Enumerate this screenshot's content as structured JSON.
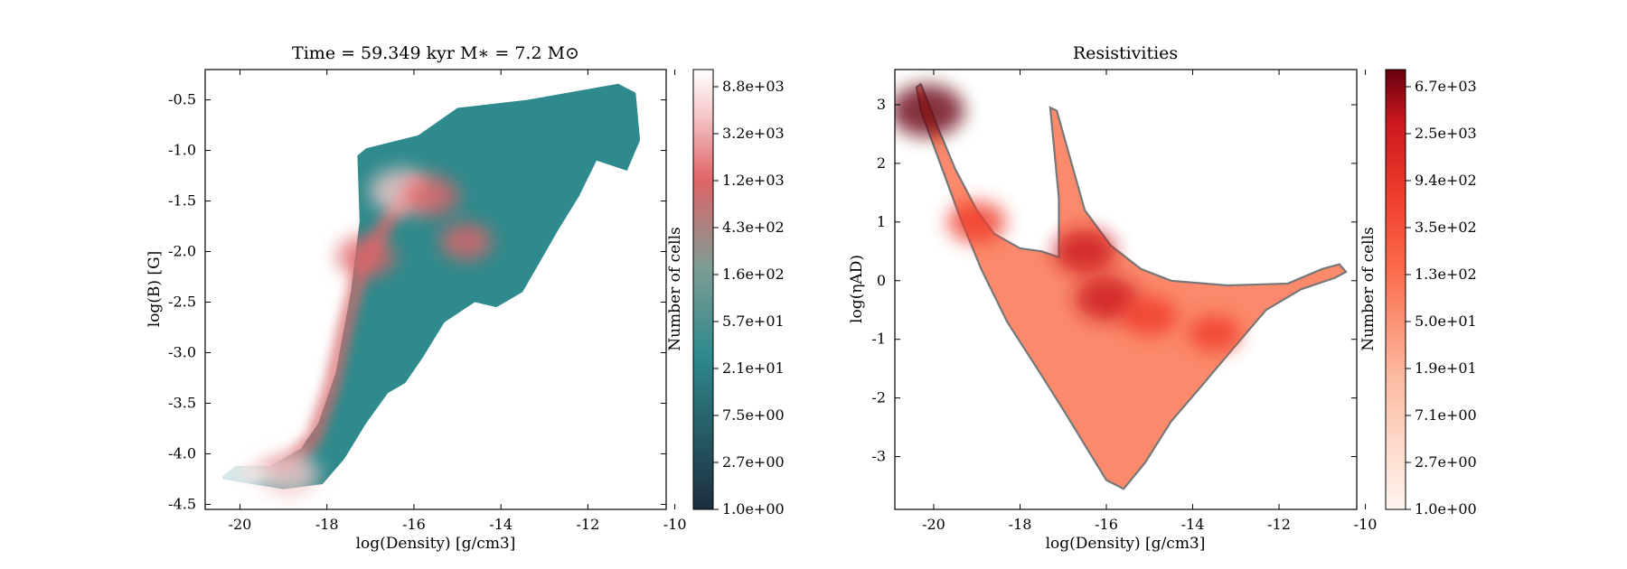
{
  "chart_data": [
    {
      "type": "heatmap",
      "title": "Time = 59.349 kyr    M∗ = 7.2 M⊙",
      "xlabel": "log(Density) [g/cm3]",
      "ylabel": "log(B) [G]",
      "xlim": [
        -20.8,
        -10.2
      ],
      "ylim": [
        -4.55,
        -0.2
      ],
      "xticks": [
        -20,
        -18,
        -16,
        -14,
        -12,
        -10
      ],
      "yticks": [
        -4.5,
        -4.0,
        -3.5,
        -3.0,
        -2.5,
        -2.0,
        -1.5,
        -1.0,
        -0.5
      ],
      "xtick_labels": [
        "-20",
        "-18",
        "-16",
        "-14",
        "-12",
        "-10"
      ],
      "ytick_labels": [
        "-4.5",
        "-4.0",
        "-3.5",
        "-3.0",
        "-2.5",
        "-2.0",
        "-1.5",
        "-1.0",
        "-0.5"
      ],
      "grid": false,
      "colormap": [
        "#1d2d40",
        "#2e8a8c",
        "#7e9c94",
        "#e06468",
        "#f6c9cb",
        "#ffffff"
      ],
      "colorbar": {
        "label": "Number of cells",
        "scale": "log",
        "tick_labels": [
          "1.0e+00",
          "2.7e+00",
          "7.5e+00",
          "2.1e+01",
          "5.7e+01",
          "1.6e+02",
          "4.3e+02",
          "1.2e+03",
          "3.2e+03",
          "8.8e+03"
        ]
      },
      "outline": [
        {
          "x": -20.4,
          "y": -4.22
        },
        {
          "x": -20.1,
          "y": -4.12
        },
        {
          "x": -19.3,
          "y": -4.12
        },
        {
          "x": -18.6,
          "y": -3.95
        },
        {
          "x": -18.2,
          "y": -3.7
        },
        {
          "x": -17.8,
          "y": -3.2
        },
        {
          "x": -17.45,
          "y": -2.4
        },
        {
          "x": -17.25,
          "y": -1.7
        },
        {
          "x": -17.3,
          "y": -1.05
        },
        {
          "x": -17.1,
          "y": -0.98
        },
        {
          "x": -15.9,
          "y": -0.85
        },
        {
          "x": -15.0,
          "y": -0.58
        },
        {
          "x": -13.4,
          "y": -0.5
        },
        {
          "x": -11.3,
          "y": -0.34
        },
        {
          "x": -10.9,
          "y": -0.43
        },
        {
          "x": -10.8,
          "y": -0.9
        },
        {
          "x": -11.1,
          "y": -1.2
        },
        {
          "x": -11.8,
          "y": -1.1
        },
        {
          "x": -12.2,
          "y": -1.45
        },
        {
          "x": -12.7,
          "y": -1.8
        },
        {
          "x": -13.1,
          "y": -2.1
        },
        {
          "x": -13.5,
          "y": -2.4
        },
        {
          "x": -14.1,
          "y": -2.55
        },
        {
          "x": -14.6,
          "y": -2.5
        },
        {
          "x": -15.3,
          "y": -2.7
        },
        {
          "x": -15.8,
          "y": -3.05
        },
        {
          "x": -16.2,
          "y": -3.3
        },
        {
          "x": -16.6,
          "y": -3.4
        },
        {
          "x": -17.1,
          "y": -3.7
        },
        {
          "x": -17.6,
          "y": -4.05
        },
        {
          "x": -18.1,
          "y": -4.3
        },
        {
          "x": -19.0,
          "y": -4.35
        },
        {
          "x": -20.0,
          "y": -4.28
        },
        {
          "x": -20.4,
          "y": -4.25
        }
      ],
      "ridge": [
        {
          "x": -19.8,
          "y": -4.18
        },
        {
          "x": -18.9,
          "y": -4.1
        },
        {
          "x": -18.3,
          "y": -3.85
        },
        {
          "x": -17.9,
          "y": -3.35
        },
        {
          "x": -17.55,
          "y": -2.7
        },
        {
          "x": -17.2,
          "y": -2.15
        },
        {
          "x": -16.6,
          "y": -1.7
        },
        {
          "x": -16.0,
          "y": -1.35
        }
      ],
      "hotspots": [
        {
          "x": -16.3,
          "y": -1.4,
          "count": 900
        },
        {
          "x": -15.6,
          "y": -1.45,
          "count": 300
        },
        {
          "x": -14.8,
          "y": -1.9,
          "count": 150
        },
        {
          "x": -17.1,
          "y": -2.05,
          "count": 400
        },
        {
          "x": -18.9,
          "y": -4.2,
          "count": 800
        },
        {
          "x": -20.2,
          "y": -4.18,
          "count": 8800
        }
      ]
    },
    {
      "type": "heatmap",
      "title": "Resistivities",
      "xlabel": "log(Density) [g/cm3]",
      "ylabel": "log(ηAD)",
      "xlim": [
        -20.9,
        -10.2
      ],
      "ylim": [
        -3.9,
        3.6
      ],
      "xticks": [
        -20,
        -18,
        -16,
        -14,
        -12,
        -10
      ],
      "yticks": [
        -3,
        -2,
        -1,
        0,
        1,
        2,
        3
      ],
      "xtick_labels": [
        "-20",
        "-18",
        "-16",
        "-14",
        "-12",
        "-10"
      ],
      "ytick_labels": [
        "-3",
        "-2",
        "-1",
        "0",
        "1",
        "2",
        "3"
      ],
      "grid": false,
      "colormap": [
        "#fff5f0",
        "#fcbba1",
        "#fb6a4a",
        "#ef3b2c",
        "#cb181d",
        "#67000d"
      ],
      "colorbar": {
        "label": "Number of cells",
        "scale": "log",
        "tick_labels": [
          "1.0e+00",
          "2.7e+00",
          "7.1e+00",
          "1.9e+01",
          "5.0e+01",
          "1.3e+02",
          "3.5e+02",
          "9.4e+02",
          "2.5e+03",
          "6.7e+03"
        ]
      },
      "outline": [
        {
          "x": -20.4,
          "y": 3.3
        },
        {
          "x": -20.3,
          "y": 3.35
        },
        {
          "x": -19.9,
          "y": 2.6
        },
        {
          "x": -19.5,
          "y": 1.9
        },
        {
          "x": -19.0,
          "y": 1.2
        },
        {
          "x": -18.6,
          "y": 0.8
        },
        {
          "x": -18.0,
          "y": 0.55
        },
        {
          "x": -17.5,
          "y": 0.5
        },
        {
          "x": -17.1,
          "y": 0.4
        },
        {
          "x": -17.1,
          "y": 1.4
        },
        {
          "x": -17.3,
          "y": 2.95
        },
        {
          "x": -17.15,
          "y": 2.9
        },
        {
          "x": -16.5,
          "y": 1.2
        },
        {
          "x": -15.9,
          "y": 0.6
        },
        {
          "x": -15.2,
          "y": 0.2
        },
        {
          "x": -14.5,
          "y": 0.0
        },
        {
          "x": -13.2,
          "y": -0.08
        },
        {
          "x": -11.8,
          "y": -0.05
        },
        {
          "x": -11.0,
          "y": 0.2
        },
        {
          "x": -10.6,
          "y": 0.28
        },
        {
          "x": -10.45,
          "y": 0.15
        },
        {
          "x": -10.7,
          "y": 0.05
        },
        {
          "x": -11.5,
          "y": -0.15
        },
        {
          "x": -12.3,
          "y": -0.5
        },
        {
          "x": -13.0,
          "y": -1.1
        },
        {
          "x": -13.8,
          "y": -1.8
        },
        {
          "x": -14.5,
          "y": -2.4
        },
        {
          "x": -15.1,
          "y": -3.1
        },
        {
          "x": -15.6,
          "y": -3.55
        },
        {
          "x": -16.0,
          "y": -3.4
        },
        {
          "x": -16.5,
          "y": -2.8
        },
        {
          "x": -17.0,
          "y": -2.2
        },
        {
          "x": -17.6,
          "y": -1.5
        },
        {
          "x": -18.3,
          "y": -0.7
        },
        {
          "x": -18.9,
          "y": 0.2
        },
        {
          "x": -19.4,
          "y": 1.1
        },
        {
          "x": -19.9,
          "y": 2.1
        },
        {
          "x": -20.3,
          "y": 2.9
        }
      ],
      "hotspots": [
        {
          "x": -20.15,
          "y": 2.9,
          "count": 6700
        },
        {
          "x": -19.0,
          "y": 1.0,
          "count": 400
        },
        {
          "x": -16.5,
          "y": 0.5,
          "count": 800
        },
        {
          "x": -16.0,
          "y": -0.3,
          "count": 900
        },
        {
          "x": -15.0,
          "y": -0.6,
          "count": 300
        },
        {
          "x": -13.5,
          "y": -0.9,
          "count": 120
        }
      ]
    }
  ]
}
